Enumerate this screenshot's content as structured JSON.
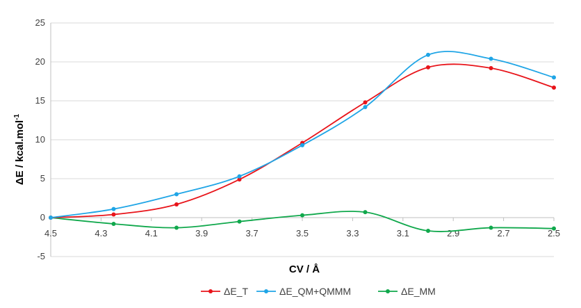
{
  "chart_data": {
    "type": "line",
    "title": "",
    "xlabel": "CV / Å",
    "ylabel": "ΔE / kcal.mol",
    "ylabel_superscript": "-1",
    "x_reversed": true,
    "xlim": [
      4.5,
      2.5
    ],
    "ylim": [
      -5,
      25
    ],
    "x_ticks": [
      "4.5",
      "4.3",
      "4.1",
      "3.9",
      "3.7",
      "3.5",
      "3.3",
      "3.1",
      "2.9",
      "2.7",
      "2.5"
    ],
    "y_ticks": [
      "-5",
      "0",
      "5",
      "10",
      "15",
      "20",
      "25"
    ],
    "grid": "horizontal",
    "legend_position": "bottom",
    "smooth": true,
    "series": [
      {
        "name": "ΔE_T",
        "color": "#e8141a",
        "points": [
          [
            4.5,
            0.0
          ],
          [
            4.25,
            0.4
          ],
          [
            4.0,
            1.7
          ],
          [
            3.75,
            4.9
          ],
          [
            3.5,
            9.6
          ],
          [
            3.25,
            14.8
          ],
          [
            3.0,
            19.3
          ],
          [
            2.75,
            19.2
          ],
          [
            2.5,
            16.7
          ]
        ]
      },
      {
        "name": "ΔE_QM+QMMM",
        "color": "#1fa5e6",
        "points": [
          [
            4.5,
            0.0
          ],
          [
            4.25,
            1.1
          ],
          [
            4.0,
            3.0
          ],
          [
            3.75,
            5.3
          ],
          [
            3.5,
            9.3
          ],
          [
            3.25,
            14.2
          ],
          [
            3.0,
            20.9
          ],
          [
            2.75,
            20.4
          ],
          [
            2.5,
            18.0
          ]
        ]
      },
      {
        "name": "ΔE_MM",
        "color": "#10a84c",
        "points": [
          [
            4.5,
            0.0
          ],
          [
            4.25,
            -0.8
          ],
          [
            4.0,
            -1.3
          ],
          [
            3.75,
            -0.5
          ],
          [
            3.5,
            0.3
          ],
          [
            3.25,
            0.7
          ],
          [
            3.0,
            -1.7
          ],
          [
            2.75,
            -1.3
          ],
          [
            2.5,
            -1.4
          ]
        ]
      }
    ]
  }
}
